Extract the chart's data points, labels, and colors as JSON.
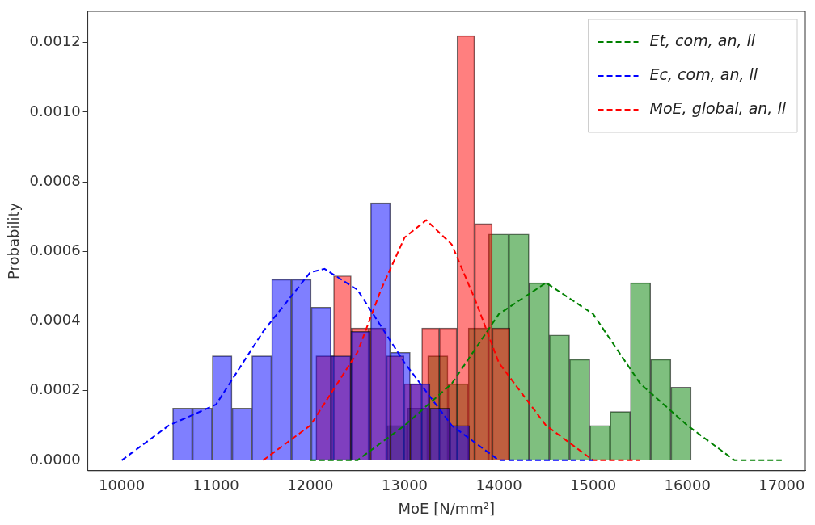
{
  "chart_data": {
    "type": "histogram",
    "xlabel": "MoE [N/mm²]",
    "ylabel": "Probability",
    "xlim": [
      9640,
      17250
    ],
    "xticks": [
      10000,
      11000,
      12000,
      13000,
      14000,
      15000,
      16000,
      17000
    ],
    "ylim": [
      -3e-05,
      0.00129
    ],
    "yticks": [
      {
        "value": 0,
        "label": "0.0000"
      },
      {
        "value": 0.0002,
        "label": "0.0002"
      },
      {
        "value": 0.0004,
        "label": "0.0004"
      },
      {
        "value": 0.0006,
        "label": "0.0006"
      },
      {
        "value": 0.0008,
        "label": "0.0008"
      },
      {
        "value": 0.001,
        "label": "0.0010"
      },
      {
        "value": 0.0012,
        "label": "0.0012"
      }
    ],
    "grid": false,
    "legend": "top right",
    "line_style": "dashed",
    "series": [
      {
        "color": "#0000ff",
        "bins": [
          10540,
          10750,
          10960,
          11170,
          11380,
          11590,
          11800,
          12010,
          12220,
          12430,
          12640,
          12850,
          13060,
          13270,
          13480,
          13690
        ],
        "values": [
          0.00015,
          0.00015,
          0.0003,
          0.00015,
          0.0003,
          0.00052,
          0.00052,
          0.00044,
          0.0003,
          0.00037,
          0.00074,
          0.00031,
          0.00022,
          0.00015,
          0.0001
        ]
      },
      {
        "color": "#ff0000",
        "bins": [
          12060,
          12247,
          12434,
          12621,
          12808,
          12995,
          13182,
          13369,
          13556,
          13743,
          13930,
          14117
        ],
        "values": [
          0.0003,
          0.00053,
          0.00038,
          0.00038,
          0.0003,
          0.00022,
          0.00038,
          0.00038,
          0.00122,
          0.00068,
          0.00038
        ]
      },
      {
        "color": "#008000",
        "bins": [
          12815,
          13030,
          13245,
          13460,
          13675,
          13890,
          14105,
          14320,
          14535,
          14750,
          14965,
          15180,
          15395,
          15610,
          15825,
          16040
        ],
        "values": [
          0.0001,
          0.00015,
          0.0003,
          0.00022,
          0.00038,
          0.00065,
          0.00065,
          0.00051,
          0.00036,
          0.00029,
          0.0001,
          0.00014,
          0.00051,
          0.00029,
          0.00021
        ]
      },
      {
        "type": "line",
        "name": "Et, com, an, ll",
        "color": "#008000",
        "x": [
          12000,
          12500,
          13000,
          13500,
          14000,
          14500,
          15000,
          15500,
          16000,
          16500,
          17000
        ],
        "values": [
          0,
          0,
          0.0001,
          0.00022,
          0.00042,
          0.00051,
          0.00042,
          0.00022,
          0.0001,
          0,
          0
        ]
      },
      {
        "type": "line",
        "name": "Ec, com, an, ll",
        "color": "#0000ff",
        "x": [
          10000,
          10500,
          11000,
          11500,
          12000,
          12150,
          12500,
          13000,
          13500,
          14000,
          14500,
          15000
        ],
        "values": [
          0,
          0.0001,
          0.00016,
          0.00037,
          0.00054,
          0.00055,
          0.00049,
          0.00028,
          0.0001,
          0,
          0,
          0
        ]
      },
      {
        "type": "line",
        "name": "MoE, global, an, ll",
        "color": "#ff0000",
        "x": [
          11500,
          12000,
          12500,
          12750,
          13000,
          13230,
          13500,
          13750,
          14000,
          14500,
          15000,
          15500
        ],
        "values": [
          0,
          0.0001,
          0.00031,
          0.00049,
          0.00064,
          0.00069,
          0.00062,
          0.00046,
          0.00028,
          0.0001,
          0,
          0
        ]
      }
    ]
  }
}
